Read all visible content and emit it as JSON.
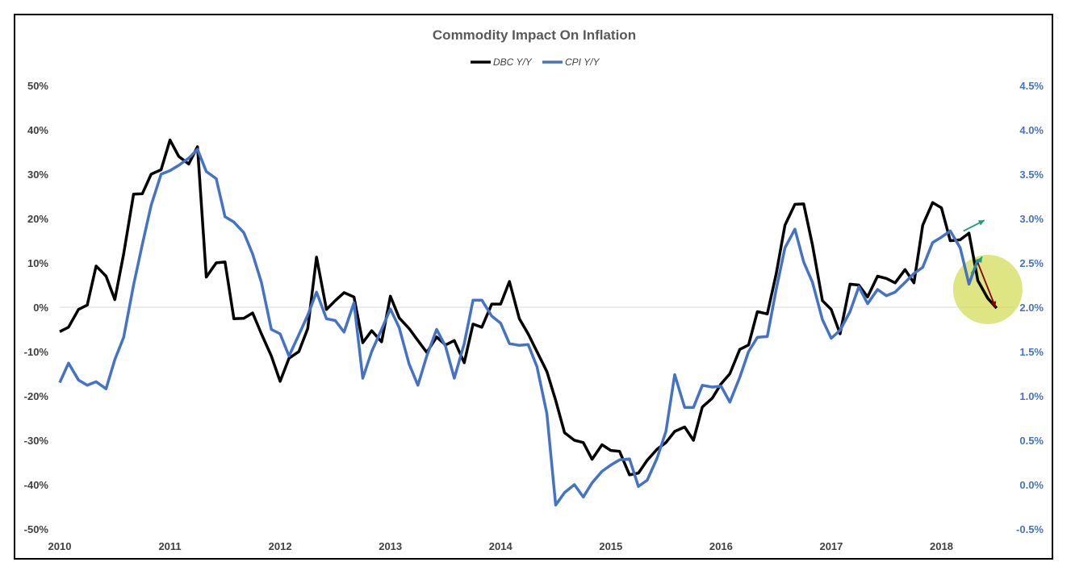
{
  "chart_data": {
    "type": "line",
    "title": "Commodity Impact On Inflation",
    "legend_position": "top-center",
    "x_tick_labels": [
      "2010",
      "2011",
      "2012",
      "2013",
      "2014",
      "2015",
      "2016",
      "2017",
      "2018"
    ],
    "x_range": [
      2010.0,
      2018.67
    ],
    "y_left": {
      "range": [
        -50,
        50
      ],
      "tick_values": [
        50,
        40,
        30,
        20,
        10,
        0,
        -10,
        -20,
        -30,
        -40,
        -50
      ],
      "tick_labels": [
        "50%",
        "40%",
        "30%",
        "20%",
        "10%",
        "0%",
        "-10%",
        "-20%",
        "-30%",
        "-40%",
        "-50%"
      ]
    },
    "y_right": {
      "range": [
        -0.5,
        4.5
      ],
      "tick_values": [
        4.5,
        4.0,
        3.5,
        3.0,
        2.5,
        2.0,
        1.5,
        1.0,
        0.5,
        0.0,
        -0.5
      ],
      "tick_labels": [
        "4.5%",
        "4.0%",
        "3.5%",
        "3.0%",
        "2.5%",
        "2.0%",
        "1.5%",
        "1.0%",
        "0.5%",
        "0.0%",
        "-0.5%"
      ]
    },
    "series": [
      {
        "name": "DBC Y/Y",
        "axis": "left",
        "color": "#000000",
        "x": [
          2010.0,
          2010.08,
          2010.17,
          2010.25,
          2010.33,
          2010.42,
          2010.5,
          2010.58,
          2010.67,
          2010.75,
          2010.83,
          2010.92,
          2011.0,
          2011.08,
          2011.17,
          2011.25,
          2011.33,
          2011.42,
          2011.5,
          2011.58,
          2011.67,
          2011.75,
          2011.83,
          2011.92,
          2012.0,
          2012.08,
          2012.17,
          2012.25,
          2012.33,
          2012.42,
          2012.5,
          2012.58,
          2012.67,
          2012.75,
          2012.83,
          2012.92,
          2013.0,
          2013.08,
          2013.17,
          2013.25,
          2013.33,
          2013.42,
          2013.5,
          2013.58,
          2013.67,
          2013.75,
          2013.83,
          2013.92,
          2014.0,
          2014.08,
          2014.17,
          2014.25,
          2014.33,
          2014.42,
          2014.5,
          2014.58,
          2014.67,
          2014.75,
          2014.83,
          2014.92,
          2015.0,
          2015.08,
          2015.17,
          2015.25,
          2015.33,
          2015.42,
          2015.5,
          2015.58,
          2015.67,
          2015.75,
          2015.83,
          2015.92,
          2016.0,
          2016.08,
          2016.17,
          2016.25,
          2016.33,
          2016.42,
          2016.5,
          2016.58,
          2016.67,
          2016.75,
          2016.83,
          2016.92,
          2017.0,
          2017.08,
          2017.17,
          2017.25,
          2017.33,
          2017.42,
          2017.5,
          2017.58,
          2017.67,
          2017.75,
          2017.83,
          2017.92,
          2018.0,
          2018.08,
          2018.17,
          2018.25,
          2018.33,
          2018.42,
          2018.5
        ],
        "values": [
          -5.5,
          -4.5,
          -0.5,
          0.5,
          9.3,
          7,
          1.7,
          12,
          25.5,
          25.6,
          30,
          31,
          37.7,
          34,
          32.3,
          36.2,
          6.8,
          10,
          10.2,
          -2.6,
          -2.5,
          -1.3,
          -6,
          -11,
          -16.7,
          -11.5,
          -10,
          -4.8,
          11.3,
          -0.5,
          1.5,
          3.3,
          2.3,
          -8,
          -5.3,
          -7.8,
          2.5,
          -2.4,
          -4.8,
          -7.5,
          -10.2,
          -6.7,
          -8.5,
          -7.5,
          -12.5,
          -3.8,
          -4.5,
          0.7,
          0.7,
          5.8,
          -2.6,
          -6,
          -10,
          -14.5,
          -21,
          -28.3,
          -30,
          -30.5,
          -34.3,
          -31,
          -32.3,
          -32.5,
          -37.8,
          -37.4,
          -34.5,
          -32,
          -30.5,
          -28,
          -27,
          -30,
          -22.5,
          -20.5,
          -17.3,
          -15,
          -9.5,
          -8.5,
          -1,
          -1.5,
          7.5,
          18.5,
          23.2,
          23.3,
          14,
          1.5,
          -0.5,
          -6,
          5.2,
          5,
          2.3,
          7,
          6.5,
          5.5,
          8.5,
          5.5,
          18.5,
          23.6,
          22.4,
          15,
          15.2,
          16.7,
          6,
          2,
          -0.2
        ]
      },
      {
        "name": "CPI Y/Y",
        "axis": "right",
        "color": "#4472C4",
        "x": [
          2010.0,
          2010.08,
          2010.17,
          2010.25,
          2010.33,
          2010.42,
          2010.5,
          2010.58,
          2010.67,
          2010.75,
          2010.83,
          2010.92,
          2011.0,
          2011.08,
          2011.17,
          2011.25,
          2011.33,
          2011.42,
          2011.5,
          2011.58,
          2011.67,
          2011.75,
          2011.83,
          2011.92,
          2012.0,
          2012.08,
          2012.17,
          2012.25,
          2012.33,
          2012.42,
          2012.5,
          2012.58,
          2012.67,
          2012.75,
          2012.83,
          2012.92,
          2013.0,
          2013.08,
          2013.17,
          2013.25,
          2013.33,
          2013.42,
          2013.5,
          2013.58,
          2013.67,
          2013.75,
          2013.83,
          2013.92,
          2014.0,
          2014.08,
          2014.17,
          2014.25,
          2014.33,
          2014.42,
          2014.5,
          2014.58,
          2014.67,
          2014.75,
          2014.83,
          2014.92,
          2015.0,
          2015.08,
          2015.17,
          2015.25,
          2015.33,
          2015.42,
          2015.5,
          2015.58,
          2015.67,
          2015.75,
          2015.83,
          2015.92,
          2016.0,
          2016.08,
          2016.17,
          2016.25,
          2016.33,
          2016.42,
          2016.5,
          2016.58,
          2016.67,
          2016.75,
          2016.83,
          2016.92,
          2017.0,
          2017.08,
          2017.17,
          2017.25,
          2017.33,
          2017.42,
          2017.5,
          2017.58,
          2017.67,
          2017.75,
          2017.83,
          2017.92,
          2018.0,
          2018.08,
          2018.17,
          2018.25,
          2018.33,
          2018.42
        ],
        "values": [
          1.15,
          1.37,
          1.18,
          1.12,
          1.16,
          1.08,
          1.41,
          1.66,
          2.25,
          2.71,
          3.15,
          3.5,
          3.54,
          3.6,
          3.68,
          3.78,
          3.53,
          3.45,
          3.02,
          2.96,
          2.84,
          2.6,
          2.28,
          1.75,
          1.7,
          1.45,
          1.69,
          1.91,
          2.17,
          1.87,
          1.85,
          1.72,
          2.05,
          1.2,
          1.5,
          1.75,
          1.98,
          1.77,
          1.36,
          1.12,
          1.45,
          1.75,
          1.56,
          1.2,
          1.59,
          2.08,
          2.08,
          1.9,
          1.82,
          1.59,
          1.57,
          1.58,
          1.33,
          0.8,
          -0.23,
          -0.09,
          0.0,
          -0.14,
          0.02,
          0.15,
          0.22,
          0.28,
          0.29,
          -0.02,
          0.05,
          0.3,
          0.6,
          1.24,
          0.87,
          0.87,
          1.12,
          1.1,
          1.11,
          0.93,
          1.21,
          1.5,
          1.66,
          1.67,
          2.2,
          2.67,
          2.88,
          2.51,
          2.28,
          1.86,
          1.65,
          1.74,
          1.95,
          2.23,
          2.04,
          2.2,
          2.13,
          2.17,
          2.28,
          2.38,
          2.45,
          2.73,
          2.79,
          2.86,
          2.67,
          2.26,
          2.54,
          null
        ]
      }
    ],
    "annotations": [
      {
        "type": "arrow",
        "color": "#1A9E7A",
        "axis": "right",
        "from": [
          2018.2,
          2.86
        ],
        "to": [
          2018.39,
          2.98
        ]
      },
      {
        "type": "arrow",
        "color": "#1A9E7A",
        "axis": "right",
        "from": [
          2018.27,
          2.38
        ],
        "to": [
          2018.37,
          2.57
        ]
      },
      {
        "type": "arrow",
        "color": "#8B0000",
        "axis": "left",
        "from": [
          2018.33,
          10
        ],
        "to": [
          2018.49,
          0
        ]
      },
      {
        "type": "highlight-circle",
        "color": "#D4DC5A",
        "axis": "left",
        "center": [
          2018.42,
          4
        ]
      }
    ]
  }
}
